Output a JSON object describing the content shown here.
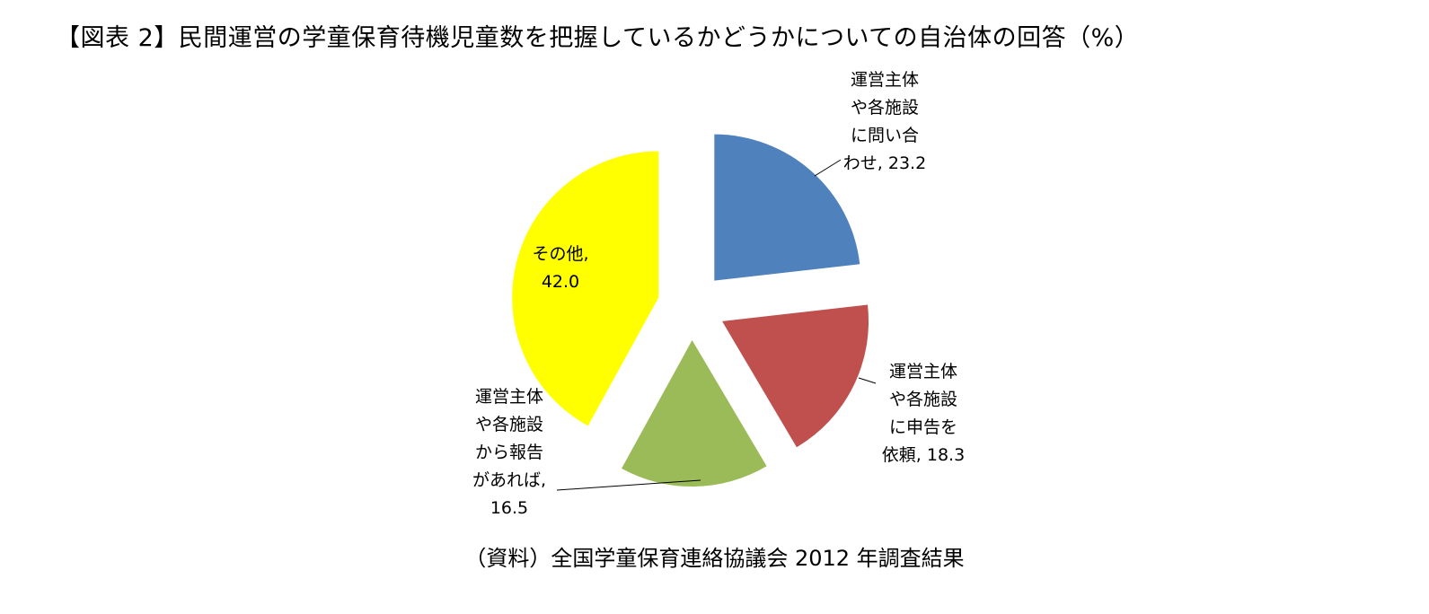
{
  "title": "【図表 2】民間運営の学童保育待機児童数を把握しているかどうかについての自治体の回答（%）",
  "source": "（資料）全国学童保育連絡協議会 2012 年調査結果",
  "chart_data": {
    "type": "pie",
    "title": "【図表 2】民間運営の学童保育待機児童数を把握しているかどうかについての自治体の回答（%）",
    "exploded": true,
    "start": "12 o'clock",
    "direction": "clockwise",
    "slices": [
      {
        "label": "運営主体や各施設に問い合わせ",
        "value": 23.2,
        "color": "#4f81bd",
        "label_lines": [
          "運営主体",
          "や各施設",
          "に問い合",
          "わせ, 23.2"
        ]
      },
      {
        "label": "運営主体や各施設に申告を依頼",
        "value": 18.3,
        "color": "#c0504d",
        "label_lines": [
          "運営主体",
          "や各施設",
          "に申告を",
          "依頼, 18.3"
        ]
      },
      {
        "label": "運営主体や各施設から報告があれば",
        "value": 16.5,
        "color": "#9bbb59",
        "label_lines": [
          "運営主体",
          "や各施設",
          "から報告",
          "があれば,",
          "16.5"
        ]
      },
      {
        "label": "その他",
        "value": 42.0,
        "color": "#ffff00",
        "label_lines": [
          "その他,",
          "42.0"
        ]
      }
    ]
  }
}
